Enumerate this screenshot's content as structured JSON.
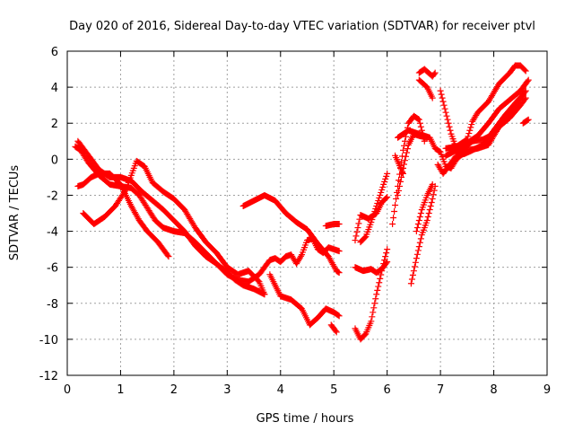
{
  "chart_data": {
    "type": "scatter",
    "title": "Day 020 of 2016, Sidereal Day-to-day VTEC variation (SDTVAR) for receiver ptvl",
    "xlabel": "GPS time / hours",
    "ylabel": "SDTVAR / TECUs",
    "xlim": [
      0,
      9
    ],
    "ylim": [
      -12,
      6
    ],
    "xticks": [
      0,
      1,
      2,
      3,
      4,
      5,
      6,
      7,
      8,
      9
    ],
    "yticks": [
      -12,
      -10,
      -8,
      -6,
      -4,
      -2,
      0,
      2,
      4,
      6
    ],
    "grid": true,
    "marker": "+",
    "color": "#ff0000",
    "series": [
      {
        "points": [
          [
            0.15,
            0.7
          ],
          [
            0.25,
            0.5
          ],
          [
            0.4,
            -0.2
          ],
          [
            0.6,
            -0.9
          ],
          [
            0.8,
            -1.4
          ],
          [
            1.0,
            -1.5
          ],
          [
            1.2,
            -1.6
          ],
          [
            1.35,
            -2.0
          ],
          [
            1.5,
            -2.7
          ],
          [
            1.65,
            -3.4
          ],
          [
            1.8,
            -3.8
          ],
          [
            2.0,
            -4.0
          ],
          [
            2.2,
            -4.1
          ],
          [
            2.4,
            -4.6
          ],
          [
            2.6,
            -5.2
          ],
          [
            2.8,
            -5.8
          ],
          [
            3.0,
            -6.3
          ],
          [
            3.15,
            -6.7
          ],
          [
            3.3,
            -7.0
          ],
          [
            3.5,
            -7.2
          ],
          [
            3.7,
            -7.5
          ]
        ]
      },
      {
        "points": [
          [
            0.2,
            1.0
          ],
          [
            0.3,
            0.6
          ],
          [
            0.45,
            0.0
          ],
          [
            0.6,
            -0.6
          ],
          [
            0.8,
            -1.0
          ],
          [
            1.0,
            -1.0
          ],
          [
            1.2,
            -1.2
          ],
          [
            1.4,
            -1.8
          ],
          [
            1.6,
            -2.3
          ],
          [
            1.8,
            -2.8
          ],
          [
            2.0,
            -3.4
          ],
          [
            2.2,
            -4.0
          ],
          [
            2.4,
            -4.8
          ],
          [
            2.6,
            -5.4
          ],
          [
            2.8,
            -5.8
          ],
          [
            3.0,
            -6.4
          ],
          [
            3.2,
            -6.7
          ],
          [
            3.4,
            -6.8
          ],
          [
            3.6,
            -6.4
          ],
          [
            3.7,
            -6.0
          ],
          [
            3.8,
            -5.6
          ],
          [
            3.9,
            -5.5
          ],
          [
            4.0,
            -5.7
          ],
          [
            4.1,
            -5.4
          ],
          [
            4.2,
            -5.3
          ],
          [
            4.3,
            -5.8
          ],
          [
            4.4,
            -5.3
          ],
          [
            4.5,
            -4.5
          ],
          [
            4.6,
            -4.4
          ],
          [
            4.7,
            -5.0
          ],
          [
            4.8,
            -5.2
          ],
          [
            4.9,
            -4.9
          ],
          [
            5.0,
            -5.0
          ],
          [
            5.1,
            -5.1
          ]
        ]
      },
      {
        "points": [
          [
            0.3,
            -3.0
          ],
          [
            0.5,
            -3.6
          ],
          [
            0.7,
            -3.2
          ],
          [
            0.9,
            -2.6
          ],
          [
            1.1,
            -1.7
          ],
          [
            1.25,
            -0.5
          ],
          [
            1.3,
            -0.1
          ],
          [
            1.45,
            -0.4
          ],
          [
            1.6,
            -1.3
          ],
          [
            1.8,
            -1.8
          ],
          [
            2.0,
            -2.2
          ],
          [
            2.2,
            -2.8
          ],
          [
            2.4,
            -3.8
          ],
          [
            2.6,
            -4.6
          ],
          [
            2.8,
            -5.2
          ],
          [
            3.0,
            -6.0
          ],
          [
            3.2,
            -6.4
          ],
          [
            3.4,
            -6.2
          ],
          [
            3.6,
            -6.8
          ],
          [
            3.7,
            -7.5
          ]
        ]
      },
      {
        "points": [
          [
            0.2,
            -1.5
          ],
          [
            0.3,
            -1.4
          ],
          [
            0.45,
            -1.0
          ],
          [
            0.6,
            -0.8
          ],
          [
            0.8,
            -0.8
          ],
          [
            1.0,
            -1.4
          ],
          [
            1.2,
            -2.6
          ],
          [
            1.35,
            -3.4
          ],
          [
            1.5,
            -4.0
          ],
          [
            1.7,
            -4.6
          ],
          [
            1.9,
            -5.4
          ]
        ]
      },
      {
        "points": [
          [
            3.3,
            -2.6
          ],
          [
            3.5,
            -2.3
          ],
          [
            3.7,
            -2.0
          ],
          [
            3.9,
            -2.3
          ],
          [
            4.1,
            -3.0
          ],
          [
            4.3,
            -3.5
          ],
          [
            4.5,
            -3.9
          ],
          [
            4.7,
            -4.7
          ],
          [
            4.9,
            -5.4
          ],
          [
            5.05,
            -6.2
          ],
          [
            5.1,
            -6.3
          ]
        ]
      },
      {
        "points": [
          [
            3.8,
            -6.4
          ],
          [
            4.0,
            -7.6
          ],
          [
            4.2,
            -7.8
          ],
          [
            4.4,
            -8.3
          ],
          [
            4.55,
            -9.2
          ],
          [
            4.7,
            -8.8
          ],
          [
            4.85,
            -8.3
          ],
          [
            5.0,
            -8.5
          ],
          [
            5.1,
            -8.7
          ]
        ]
      },
      {
        "points": [
          [
            4.85,
            -3.7
          ],
          [
            5.0,
            -3.6
          ],
          [
            5.1,
            -3.6
          ]
        ]
      },
      {
        "points": [
          [
            4.95,
            -9.2
          ],
          [
            5.05,
            -9.6
          ]
        ]
      },
      {
        "points": [
          [
            5.4,
            -9.4
          ],
          [
            5.5,
            -10.0
          ],
          [
            5.6,
            -9.7
          ],
          [
            5.7,
            -9.0
          ],
          [
            5.8,
            -7.5
          ],
          [
            5.9,
            -6.2
          ],
          [
            6.0,
            -5.0
          ]
        ]
      },
      {
        "points": [
          [
            5.4,
            -6.0
          ],
          [
            5.55,
            -6.2
          ],
          [
            5.7,
            -6.1
          ],
          [
            5.8,
            -6.3
          ],
          [
            5.9,
            -6.1
          ],
          [
            6.0,
            -5.7
          ]
        ]
      },
      {
        "points": [
          [
            5.4,
            -4.5
          ],
          [
            5.5,
            -3.1
          ],
          [
            5.65,
            -3.3
          ],
          [
            5.8,
            -3.0
          ],
          [
            5.9,
            -2.4
          ],
          [
            6.0,
            -2.1
          ]
        ]
      },
      {
        "points": [
          [
            5.5,
            -4.6
          ],
          [
            5.6,
            -4.3
          ],
          [
            5.7,
            -3.5
          ],
          [
            5.8,
            -2.6
          ],
          [
            5.9,
            -1.7
          ],
          [
            6.0,
            -0.8
          ]
        ]
      },
      {
        "points": [
          [
            6.1,
            -3.6
          ],
          [
            6.2,
            -1.5
          ],
          [
            6.3,
            0.5
          ],
          [
            6.4,
            2.0
          ],
          [
            6.5,
            2.4
          ],
          [
            6.6,
            2.2
          ],
          [
            6.7,
            1.0
          ]
        ]
      },
      {
        "points": [
          [
            6.2,
            -2.0
          ],
          [
            6.3,
            -0.5
          ],
          [
            6.4,
            0.8
          ],
          [
            6.5,
            1.4
          ],
          [
            6.6,
            1.3
          ],
          [
            6.75,
            1.2
          ]
        ]
      },
      {
        "points": [
          [
            6.15,
            0.2
          ],
          [
            6.3,
            -0.8
          ]
        ]
      },
      {
        "points": [
          [
            6.45,
            -6.9
          ],
          [
            6.55,
            -5.5
          ],
          [
            6.65,
            -4.2
          ],
          [
            6.75,
            -3.4
          ],
          [
            6.85,
            -2.2
          ],
          [
            6.9,
            -1.5
          ]
        ]
      },
      {
        "points": [
          [
            6.55,
            -4.0
          ],
          [
            6.65,
            -2.8
          ],
          [
            6.75,
            -2.0
          ],
          [
            6.85,
            -1.4
          ]
        ]
      },
      {
        "points": [
          [
            6.6,
            4.4
          ],
          [
            6.75,
            4.0
          ],
          [
            6.85,
            3.4
          ]
        ]
      },
      {
        "points": [
          [
            6.6,
            4.8
          ],
          [
            6.7,
            5.0
          ],
          [
            6.85,
            4.6
          ],
          [
            6.9,
            4.8
          ]
        ]
      },
      {
        "points": [
          [
            6.2,
            1.2
          ],
          [
            6.4,
            1.6
          ],
          [
            6.6,
            1.4
          ],
          [
            6.8,
            1.2
          ],
          [
            6.9,
            0.6
          ],
          [
            7.0,
            0.4
          ],
          [
            7.1,
            -0.4
          ],
          [
            7.2,
            -0.5
          ],
          [
            7.3,
            0.0
          ],
          [
            7.5,
            0.5
          ],
          [
            7.7,
            0.6
          ],
          [
            7.9,
            0.8
          ],
          [
            8.1,
            1.8
          ],
          [
            8.3,
            2.3
          ],
          [
            8.5,
            3.0
          ],
          [
            8.6,
            3.4
          ]
        ]
      },
      {
        "points": [
          [
            7.0,
            3.8
          ],
          [
            7.1,
            2.6
          ],
          [
            7.2,
            1.4
          ],
          [
            7.3,
            0.6
          ],
          [
            7.4,
            0.5
          ],
          [
            7.6,
            1.0
          ],
          [
            7.8,
            1.1
          ],
          [
            8.0,
            1.4
          ],
          [
            8.2,
            2.2
          ],
          [
            8.4,
            2.8
          ],
          [
            8.5,
            3.4
          ],
          [
            8.6,
            3.8
          ]
        ]
      },
      {
        "points": [
          [
            7.1,
            0.2
          ],
          [
            7.3,
            0.5
          ],
          [
            7.5,
            0.9
          ],
          [
            7.7,
            1.3
          ],
          [
            7.9,
            2.0
          ],
          [
            8.1,
            2.8
          ],
          [
            8.3,
            3.3
          ],
          [
            8.5,
            3.8
          ],
          [
            8.6,
            4.2
          ],
          [
            8.65,
            4.4
          ]
        ]
      },
      {
        "points": [
          [
            7.1,
            0.6
          ],
          [
            7.3,
            0.7
          ],
          [
            7.5,
            1.1
          ],
          [
            7.6,
            2.1
          ],
          [
            7.7,
            2.6
          ],
          [
            7.9,
            3.2
          ],
          [
            8.1,
            4.2
          ],
          [
            8.3,
            4.8
          ],
          [
            8.4,
            5.2
          ],
          [
            8.5,
            5.2
          ],
          [
            8.6,
            4.9
          ]
        ]
      },
      {
        "points": [
          [
            6.95,
            -0.3
          ],
          [
            7.05,
            -0.8
          ],
          [
            7.15,
            -0.4
          ],
          [
            7.3,
            0.2
          ],
          [
            7.45,
            0.3
          ],
          [
            7.6,
            0.5
          ],
          [
            7.8,
            0.8
          ],
          [
            8.0,
            1.6
          ],
          [
            8.2,
            2.4
          ],
          [
            8.4,
            3.1
          ],
          [
            8.55,
            3.6
          ]
        ]
      },
      {
        "points": [
          [
            8.55,
            2.0
          ],
          [
            8.65,
            2.2
          ]
        ]
      }
    ]
  }
}
